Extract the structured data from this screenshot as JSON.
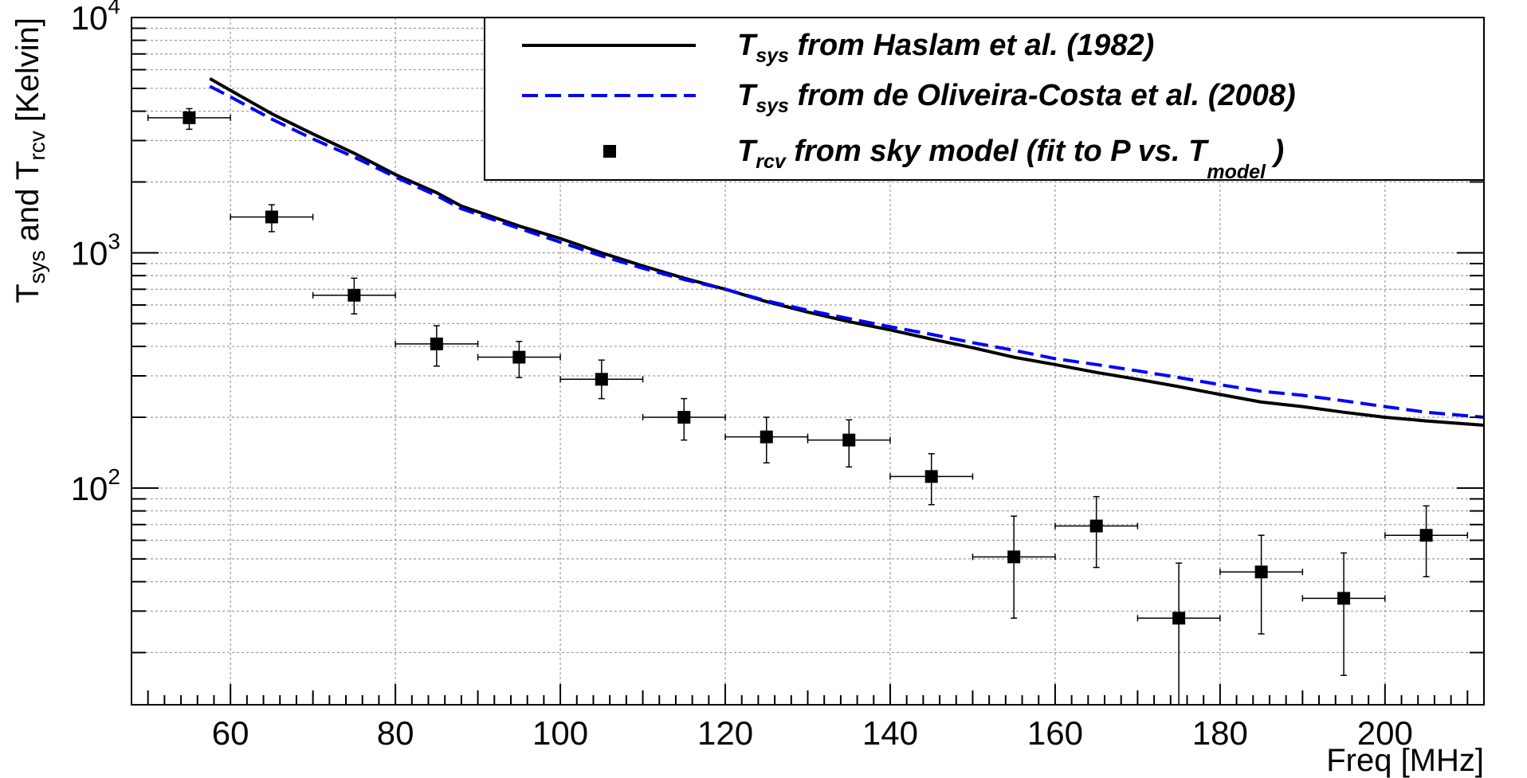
{
  "chart_data": {
    "type": "line",
    "x_label": "Freq [MHz]",
    "y_label": {
      "main": "T",
      "sub1": "sys",
      "mid": " and T",
      "sub2": "rcv",
      "tail": " [Kelvin]"
    },
    "x_range": [
      48,
      212
    ],
    "y_range": [
      12,
      10000
    ],
    "y_scale": "log",
    "grid": true,
    "x_ticks": [
      60,
      80,
      100,
      120,
      140,
      160,
      180,
      200
    ],
    "x_tick_labels": [
      "60",
      "80",
      "100",
      "120",
      "140",
      "160",
      "180",
      "200"
    ],
    "y_ticks": [
      {
        "value": 100,
        "base": "10",
        "exp": "2"
      },
      {
        "value": 1000,
        "base": "10",
        "exp": "3"
      },
      {
        "value": 10000,
        "base": "10",
        "exp": "4"
      }
    ],
    "legend": {
      "placement": "top-right",
      "entries": [
        {
          "series": "haslam",
          "main": "T",
          "sub": "sys",
          "text": " from Haslam et al. (1982)"
        },
        {
          "series": "deoliveira",
          "main": "T",
          "sub": "sys",
          "text": " from de Oliveira-Costa et al. (2008)"
        },
        {
          "series": "trcv",
          "main": "T",
          "sub": "rcv",
          "text": " from sky model (fit to P vs. T",
          "sub2": "model",
          "tail": " )"
        }
      ]
    },
    "series": [
      {
        "id": "haslam",
        "name": "Tsys from Haslam et al. (1982)",
        "style": "solid",
        "color": "#000000",
        "x": [
          57.5,
          60,
          65,
          70,
          75,
          80,
          85,
          88,
          95,
          100,
          105,
          110,
          115,
          120,
          125,
          130,
          135,
          140,
          145,
          150,
          155,
          160,
          165,
          170,
          175,
          180,
          185,
          190,
          195,
          200,
          205,
          212
        ],
        "y": [
          5500,
          4900,
          3900,
          3200,
          2650,
          2150,
          1800,
          1580,
          1300,
          1150,
          1000,
          880,
          780,
          700,
          620,
          560,
          510,
          470,
          430,
          395,
          360,
          335,
          310,
          290,
          270,
          250,
          232,
          222,
          210,
          200,
          193,
          185
        ]
      },
      {
        "id": "deoliveira",
        "name": "Tsys from de Oliveira-Costa et al. (2008)",
        "style": "dashed",
        "color": "#0000ff",
        "x": [
          57.5,
          60,
          65,
          70,
          75,
          80,
          85,
          88,
          95,
          100,
          105,
          110,
          115,
          120,
          125,
          130,
          135,
          140,
          145,
          150,
          155,
          160,
          165,
          170,
          175,
          180,
          185,
          190,
          195,
          200,
          205,
          212
        ],
        "y": [
          5100,
          4600,
          3700,
          3050,
          2550,
          2100,
          1750,
          1540,
          1270,
          1110,
          970,
          860,
          770,
          700,
          625,
          570,
          525,
          485,
          450,
          415,
          385,
          355,
          335,
          315,
          295,
          275,
          258,
          248,
          235,
          222,
          210,
          200
        ]
      },
      {
        "id": "trcv",
        "name": "Trcv from sky model (fit to P vs. Tmodel)",
        "style": "markers",
        "color": "#000000",
        "points": [
          {
            "x": 55,
            "y": 3750,
            "xerr": 5,
            "ylo": 3350,
            "yhi": 4100
          },
          {
            "x": 65,
            "y": 1420,
            "xerr": 5,
            "ylo": 1230,
            "yhi": 1600
          },
          {
            "x": 75,
            "y": 660,
            "xerr": 5,
            "ylo": 550,
            "yhi": 780
          },
          {
            "x": 85,
            "y": 410,
            "xerr": 5,
            "ylo": 330,
            "yhi": 490
          },
          {
            "x": 95,
            "y": 360,
            "xerr": 5,
            "ylo": 295,
            "yhi": 420
          },
          {
            "x": 105,
            "y": 290,
            "xerr": 5,
            "ylo": 240,
            "yhi": 350
          },
          {
            "x": 115,
            "y": 200,
            "xerr": 5,
            "ylo": 160,
            "yhi": 240
          },
          {
            "x": 125,
            "y": 165,
            "xerr": 5,
            "ylo": 128,
            "yhi": 200
          },
          {
            "x": 135,
            "y": 160,
            "xerr": 5,
            "ylo": 123,
            "yhi": 195
          },
          {
            "x": 145,
            "y": 112,
            "xerr": 5,
            "ylo": 85,
            "yhi": 140
          },
          {
            "x": 155,
            "y": 51,
            "xerr": 5,
            "ylo": 28,
            "yhi": 76
          },
          {
            "x": 165,
            "y": 69,
            "xerr": 5,
            "ylo": 46,
            "yhi": 92
          },
          {
            "x": 175,
            "y": 28,
            "xerr": 5,
            "ylo": 12,
            "yhi": 48
          },
          {
            "x": 185,
            "y": 44,
            "xerr": 5,
            "ylo": 24,
            "yhi": 63
          },
          {
            "x": 195,
            "y": 34,
            "xerr": 5,
            "ylo": 16,
            "yhi": 53
          },
          {
            "x": 205,
            "y": 63,
            "xerr": 5,
            "ylo": 42,
            "yhi": 84
          }
        ]
      }
    ]
  }
}
